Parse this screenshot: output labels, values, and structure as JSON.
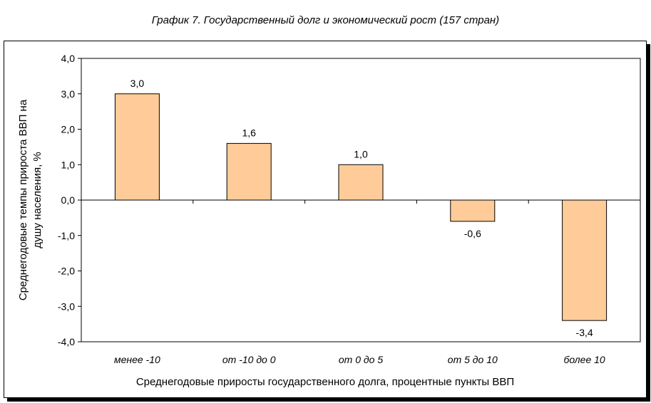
{
  "title": "График 7. Государственный долг и экономический рост (157 стран)",
  "chart_data": {
    "type": "bar",
    "categories": [
      "менее -10",
      "от -10 до 0",
      "от 0 до 5",
      "от 5 до 10",
      "более 10"
    ],
    "values": [
      3.0,
      1.6,
      1.0,
      -0.6,
      -3.4
    ],
    "value_labels": [
      "3,0",
      "1,6",
      "1,0",
      "-0,6",
      "-3,4"
    ],
    "ylim": [
      -4,
      4
    ],
    "yticks": [
      4,
      3,
      2,
      1,
      0,
      -1,
      -2,
      -3,
      -4
    ],
    "ytick_labels": [
      "4,0",
      "3,0",
      "2,0",
      "1,0",
      "0,0",
      "-1,0",
      "-2,0",
      "-3,0",
      "-4,0"
    ],
    "xlabel": "Среднегодовые приросты государственного долга, процентные пункты ВВП",
    "ylabel_lines": [
      "Среднегодовые темпы прироста ВВП на",
      "душу населения, %"
    ],
    "grid": false,
    "bar_color": "#FFCC99"
  }
}
